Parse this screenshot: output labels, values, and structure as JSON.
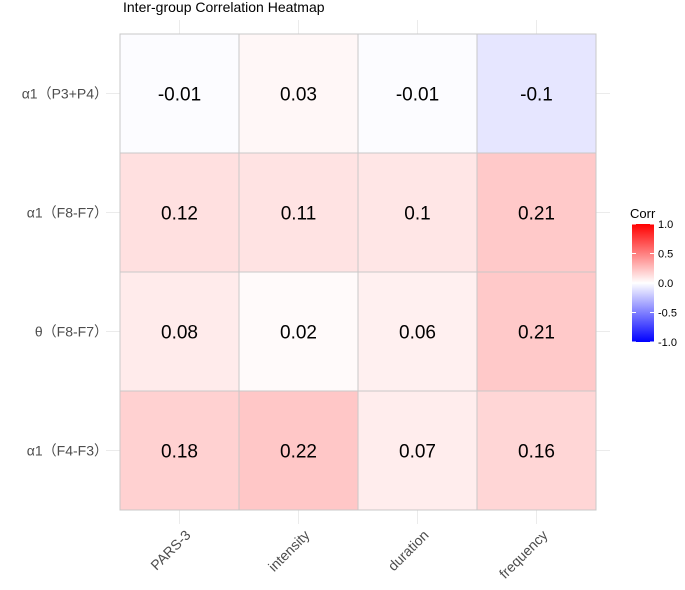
{
  "chart_data": {
    "type": "heatmap",
    "title": "Inter-group Correlation Heatmap",
    "rows": [
      "α1（P3+P4）",
      "α1（F8-F7）",
      "θ（F8-F7）",
      "α1（F4-F3）"
    ],
    "columns": [
      "PARS-3",
      "intensity",
      "duration",
      "frequency"
    ],
    "values": [
      [
        -0.01,
        0.03,
        -0.01,
        -0.1
      ],
      [
        0.12,
        0.11,
        0.1,
        0.21
      ],
      [
        0.08,
        0.02,
        0.06,
        0.21
      ],
      [
        0.18,
        0.22,
        0.07,
        0.16
      ]
    ],
    "value_labels": [
      [
        "-0.01",
        "0.03",
        "-0.01",
        "-0.1"
      ],
      [
        "0.12",
        "0.11",
        "0.1",
        "0.21"
      ],
      [
        "0.08",
        "0.02",
        "0.06",
        "0.21"
      ],
      [
        "0.18",
        "0.22",
        "0.07",
        "0.16"
      ]
    ],
    "xlabel": "",
    "ylabel": "",
    "legend": {
      "title": "Corr",
      "range": [
        -1.0,
        1.0
      ],
      "ticks": [
        "1.0",
        "0.5",
        "0.0",
        "-0.5",
        "-1.0"
      ],
      "tick_values": [
        1.0,
        0.5,
        0.0,
        -0.5,
        -1.0
      ],
      "placement": "right"
    },
    "colors": {
      "low": "#0000ff",
      "mid": "#ffffff",
      "high": "#ff0000",
      "grid": "#ebebeb",
      "border": "#c8c8c8"
    }
  }
}
